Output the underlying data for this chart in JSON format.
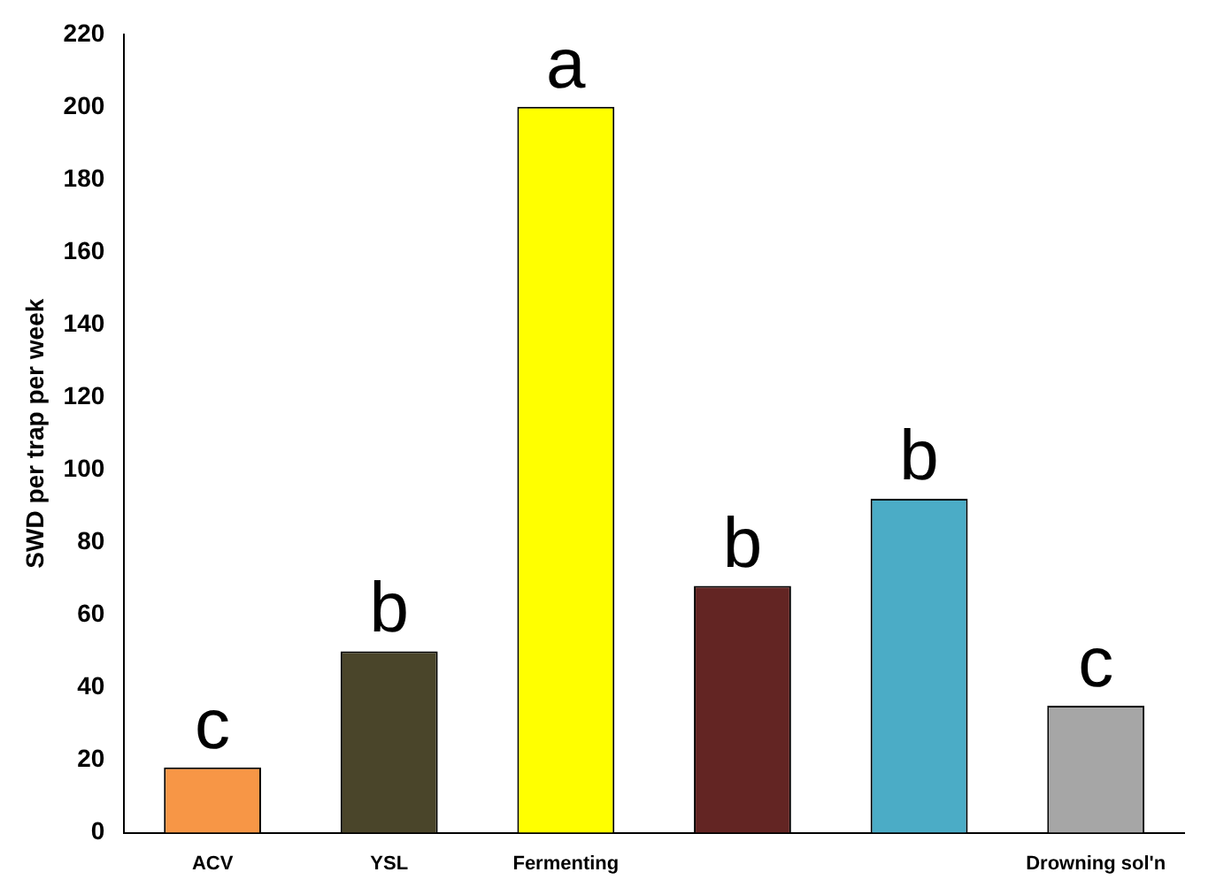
{
  "chart_data": {
    "type": "bar",
    "ylabel": "SWD per trap per week",
    "categories": [
      "ACV",
      "YSL",
      "Fermenting",
      null,
      null,
      "Drowning sol'n"
    ],
    "values": [
      18,
      50,
      200,
      68,
      92,
      35
    ],
    "colors": [
      "#f79646",
      "#4a452a",
      "#ffff00",
      "#632523",
      "#4bacc6",
      "#a6a6a6"
    ],
    "value_labels": [
      "c",
      "b",
      "a",
      "b",
      "b",
      "c"
    ],
    "ylim": [
      0,
      220
    ],
    "yticks": [
      0,
      20,
      40,
      60,
      80,
      100,
      120,
      140,
      160,
      180,
      200,
      220
    ],
    "grid": false,
    "legend": false
  }
}
